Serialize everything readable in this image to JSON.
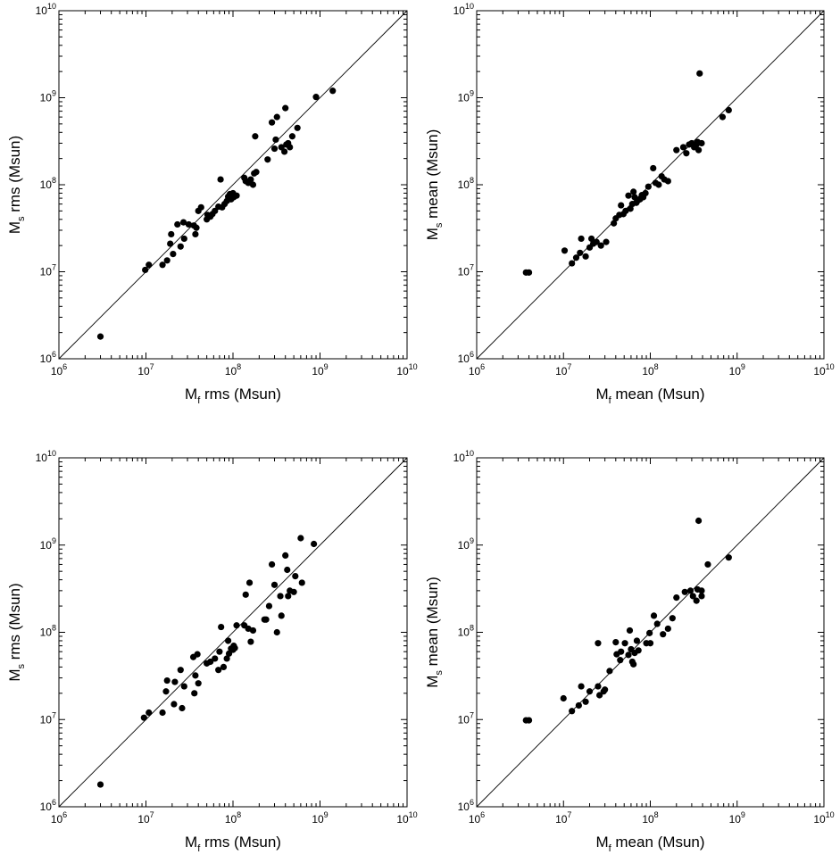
{
  "figure": {
    "panels": [
      {
        "xlabel_main": "M",
        "xlabel_sub": "f",
        "xlabel_rest": " rms (Msun)",
        "ylabel_main": "M",
        "ylabel_sub": "s",
        "ylabel_rest": " rms (Msun)"
      },
      {
        "xlabel_main": "M",
        "xlabel_sub": "f",
        "xlabel_rest": " mean (Msun)",
        "ylabel_main": "M",
        "ylabel_sub": "s",
        "ylabel_rest": " mean (Msun)"
      },
      {
        "xlabel_main": "M",
        "xlabel_sub": "f",
        "xlabel_rest": " rms (Msun)",
        "ylabel_main": "M",
        "ylabel_sub": "s",
        "ylabel_rest": " rms (Msun)"
      },
      {
        "xlabel_main": "M",
        "xlabel_sub": "f",
        "xlabel_rest": " mean (Msun)",
        "ylabel_main": "M",
        "ylabel_sub": "s",
        "ylabel_rest": " mean (Msun)"
      }
    ]
  },
  "chart_data": [
    {
      "type": "scatter",
      "xlabel": "M_f rms (Msun)",
      "ylabel": "M_s rms (Msun)",
      "xscale": "log",
      "yscale": "log",
      "xlim": [
        1000000.0,
        10000000000.0
      ],
      "ylim": [
        1000000.0,
        10000000000.0
      ],
      "tick_base": "10",
      "tick_exponents": [
        "6",
        "7",
        "8",
        "9",
        "10"
      ],
      "reference_line": "y = x",
      "grid": false,
      "points": [
        [
          3000000.0,
          1800000.0
        ],
        [
          9800000.0,
          10500000.0
        ],
        [
          10800000.0,
          12000000.0
        ],
        [
          15500000.0,
          12000000.0
        ],
        [
          17500000.0,
          13500000.0
        ],
        [
          19000000.0,
          21000000.0
        ],
        [
          19500000.0,
          27000000.0
        ],
        [
          20500000.0,
          16000000.0
        ],
        [
          23000000.0,
          35000000.0
        ],
        [
          25000000.0,
          19500000.0
        ],
        [
          27000000.0,
          37000000.0
        ],
        [
          27500000.0,
          24000000.0
        ],
        [
          31000000.0,
          35000000.0
        ],
        [
          35500000.0,
          34000000.0
        ],
        [
          37000000.0,
          27000000.0
        ],
        [
          38000000.0,
          32000000.0
        ],
        [
          40000000.0,
          50000000.0
        ],
        [
          43000000.0,
          55000000.0
        ],
        [
          50000000.0,
          40000000.0
        ],
        [
          51000000.0,
          45000000.0
        ],
        [
          55000000.0,
          43000000.0
        ],
        [
          58000000.0,
          46000000.0
        ],
        [
          62000000.0,
          50000000.0
        ],
        [
          68000000.0,
          56000000.0
        ],
        [
          72000000.0,
          115000000.0
        ],
        [
          75000000.0,
          55000000.0
        ],
        [
          80000000.0,
          60000000.0
        ],
        [
          85000000.0,
          65000000.0
        ],
        [
          88000000.0,
          73000000.0
        ],
        [
          92000000.0,
          78000000.0
        ],
        [
          95000000.0,
          68000000.0
        ],
        [
          100000000.0,
          80000000.0
        ],
        [
          102000000.0,
          72000000.0
        ],
        [
          110000000.0,
          75000000.0
        ],
        [
          135000000.0,
          120000000.0
        ],
        [
          140000000.0,
          110000000.0
        ],
        [
          150000000.0,
          105000000.0
        ],
        [
          160000000.0,
          115000000.0
        ],
        [
          170000000.0,
          100000000.0
        ],
        [
          175000000.0,
          135000000.0
        ],
        [
          180000000.0,
          360000000.0
        ],
        [
          185000000.0,
          140000000.0
        ],
        [
          250000000.0,
          195000000.0
        ],
        [
          280000000.0,
          520000000.0
        ],
        [
          300000000.0,
          260000000.0
        ],
        [
          310000000.0,
          330000000.0
        ],
        [
          320000000.0,
          600000000.0
        ],
        [
          360000000.0,
          270000000.0
        ],
        [
          390000000.0,
          240000000.0
        ],
        [
          400000000.0,
          760000000.0
        ],
        [
          410000000.0,
          290000000.0
        ],
        [
          430000000.0,
          300000000.0
        ],
        [
          450000000.0,
          270000000.0
        ],
        [
          480000000.0,
          360000000.0
        ],
        [
          550000000.0,
          450000000.0
        ],
        [
          900000000.0,
          1020000000.0
        ],
        [
          1400000000.0,
          1200000000.0
        ]
      ]
    },
    {
      "type": "scatter",
      "xlabel": "M_f mean (Msun)",
      "ylabel": "M_s mean (Msun)",
      "xscale": "log",
      "yscale": "log",
      "xlim": [
        1000000.0,
        10000000000.0
      ],
      "ylim": [
        1000000.0,
        10000000000.0
      ],
      "tick_base": "10",
      "tick_exponents": [
        "6",
        "7",
        "8",
        "9",
        "10"
      ],
      "reference_line": "y = x",
      "grid": false,
      "points": [
        [
          3700000.0,
          9800000.0
        ],
        [
          4000000.0,
          9800000.0
        ],
        [
          10300000.0,
          17500000.0
        ],
        [
          12500000.0,
          12500000.0
        ],
        [
          14000000.0,
          14500000.0
        ],
        [
          15500000.0,
          16500000.0
        ],
        [
          16000000.0,
          24000000.0
        ],
        [
          18000000.0,
          15000000.0
        ],
        [
          20000000.0,
          19000000.0
        ],
        [
          21000000.0,
          24000000.0
        ],
        [
          22000000.0,
          21000000.0
        ],
        [
          24000000.0,
          22000000.0
        ],
        [
          27000000.0,
          20000000.0
        ],
        [
          31000000.0,
          22000000.0
        ],
        [
          38000000.0,
          36000000.0
        ],
        [
          40000000.0,
          41000000.0
        ],
        [
          44000000.0,
          45000000.0
        ],
        [
          46000000.0,
          58000000.0
        ],
        [
          49000000.0,
          46000000.0
        ],
        [
          52000000.0,
          50000000.0
        ],
        [
          56000000.0,
          75000000.0
        ],
        [
          59000000.0,
          53000000.0
        ],
        [
          62000000.0,
          60000000.0
        ],
        [
          64000000.0,
          83000000.0
        ],
        [
          66000000.0,
          72000000.0
        ],
        [
          69000000.0,
          62000000.0
        ],
        [
          72000000.0,
          66000000.0
        ],
        [
          76000000.0,
          68000000.0
        ],
        [
          80000000.0,
          76000000.0
        ],
        [
          83000000.0,
          72000000.0
        ],
        [
          88000000.0,
          80000000.0
        ],
        [
          95000000.0,
          95000000.0
        ],
        [
          108000000.0,
          155000000.0
        ],
        [
          115000000.0,
          105000000.0
        ],
        [
          125000000.0,
          100000000.0
        ],
        [
          135000000.0,
          125000000.0
        ],
        [
          145000000.0,
          115000000.0
        ],
        [
          160000000.0,
          110000000.0
        ],
        [
          200000000.0,
          250000000.0
        ],
        [
          240000000.0,
          270000000.0
        ],
        [
          260000000.0,
          230000000.0
        ],
        [
          280000000.0,
          290000000.0
        ],
        [
          300000000.0,
          300000000.0
        ],
        [
          320000000.0,
          270000000.0
        ],
        [
          340000000.0,
          290000000.0
        ],
        [
          350000000.0,
          310000000.0
        ],
        [
          360000000.0,
          250000000.0
        ],
        [
          370000000.0,
          1900000000.0
        ],
        [
          390000000.0,
          300000000.0
        ],
        [
          680000000.0,
          600000000.0
        ],
        [
          800000000.0,
          720000000.0
        ]
      ]
    },
    {
      "type": "scatter",
      "xlabel": "M_f rms (Msun)",
      "ylabel": "M_s rms (Msun)",
      "xscale": "log",
      "yscale": "log",
      "xlim": [
        1000000.0,
        10000000000.0
      ],
      "ylim": [
        1000000.0,
        10000000000.0
      ],
      "tick_base": "10",
      "tick_exponents": [
        "6",
        "7",
        "8",
        "9",
        "10"
      ],
      "reference_line": "y = x",
      "grid": false,
      "points": [
        [
          3000000.0,
          1800000.0
        ],
        [
          9500000.0,
          10500000.0
        ],
        [
          10800000.0,
          12000000.0
        ],
        [
          15500000.0,
          12000000.0
        ],
        [
          17000000.0,
          21000000.0
        ],
        [
          17500000.0,
          28000000.0
        ],
        [
          21000000.0,
          15000000.0
        ],
        [
          21500000.0,
          27000000.0
        ],
        [
          25000000.0,
          37000000.0
        ],
        [
          26000000.0,
          13500000.0
        ],
        [
          27500000.0,
          24000000.0
        ],
        [
          35000000.0,
          52000000.0
        ],
        [
          36000000.0,
          20000000.0
        ],
        [
          37000000.0,
          32000000.0
        ],
        [
          39000000.0,
          56000000.0
        ],
        [
          40000000.0,
          26000000.0
        ],
        [
          50000000.0,
          44000000.0
        ],
        [
          55000000.0,
          46000000.0
        ],
        [
          62000000.0,
          50000000.0
        ],
        [
          68000000.0,
          37000000.0
        ],
        [
          70000000.0,
          60000000.0
        ],
        [
          73000000.0,
          115000000.0
        ],
        [
          78000000.0,
          40000000.0
        ],
        [
          85000000.0,
          50000000.0
        ],
        [
          88000000.0,
          80000000.0
        ],
        [
          90000000.0,
          57000000.0
        ],
        [
          95000000.0,
          65000000.0
        ],
        [
          100000000.0,
          63000000.0
        ],
        [
          102000000.0,
          70000000.0
        ],
        [
          105000000.0,
          66000000.0
        ],
        [
          110000000.0,
          120000000.0
        ],
        [
          135000000.0,
          120000000.0
        ],
        [
          140000000.0,
          270000000.0
        ],
        [
          150000000.0,
          110000000.0
        ],
        [
          155000000.0,
          370000000.0
        ],
        [
          160000000.0,
          78000000.0
        ],
        [
          170000000.0,
          105000000.0
        ],
        [
          230000000.0,
          140000000.0
        ],
        [
          240000000.0,
          140000000.0
        ],
        [
          260000000.0,
          200000000.0
        ],
        [
          280000000.0,
          600000000.0
        ],
        [
          300000000.0,
          350000000.0
        ],
        [
          320000000.0,
          100000000.0
        ],
        [
          350000000.0,
          260000000.0
        ],
        [
          360000000.0,
          155000000.0
        ],
        [
          400000000.0,
          760000000.0
        ],
        [
          420000000.0,
          520000000.0
        ],
        [
          430000000.0,
          260000000.0
        ],
        [
          450000000.0,
          300000000.0
        ],
        [
          500000000.0,
          290000000.0
        ],
        [
          520000000.0,
          440000000.0
        ],
        [
          600000000.0,
          1200000000.0
        ],
        [
          620000000.0,
          370000000.0
        ],
        [
          850000000.0,
          1030000000.0
        ]
      ]
    },
    {
      "type": "scatter",
      "xlabel": "M_f mean (Msun)",
      "ylabel": "M_s mean (Msun)",
      "xscale": "log",
      "yscale": "log",
      "xlim": [
        1000000.0,
        10000000000.0
      ],
      "ylim": [
        1000000.0,
        10000000000.0
      ],
      "tick_base": "10",
      "tick_exponents": [
        "6",
        "7",
        "8",
        "9",
        "10"
      ],
      "reference_line": "y = x",
      "grid": false,
      "points": [
        [
          3700000.0,
          9800000.0
        ],
        [
          4000000.0,
          9800000.0
        ],
        [
          10000000.0,
          17500000.0
        ],
        [
          12500000.0,
          12500000.0
        ],
        [
          15000000.0,
          14500000.0
        ],
        [
          16000000.0,
          24000000.0
        ],
        [
          18000000.0,
          16000000.0
        ],
        [
          20000000.0,
          21000000.0
        ],
        [
          25000000.0,
          75000000.0
        ],
        [
          25000000.0,
          24000000.0
        ],
        [
          26000000.0,
          19000000.0
        ],
        [
          29000000.0,
          21000000.0
        ],
        [
          30000000.0,
          22000000.0
        ],
        [
          34000000.0,
          36000000.0
        ],
        [
          40000000.0,
          77000000.0
        ],
        [
          41000000.0,
          56000000.0
        ],
        [
          45000000.0,
          48000000.0
        ],
        [
          46000000.0,
          60000000.0
        ],
        [
          51000000.0,
          75000000.0
        ],
        [
          56000000.0,
          55000000.0
        ],
        [
          58000000.0,
          105000000.0
        ],
        [
          60000000.0,
          64000000.0
        ],
        [
          62000000.0,
          46000000.0
        ],
        [
          64000000.0,
          43000000.0
        ],
        [
          66000000.0,
          58000000.0
        ],
        [
          70000000.0,
          80000000.0
        ],
        [
          73000000.0,
          62000000.0
        ],
        [
          90000000.0,
          75000000.0
        ],
        [
          98000000.0,
          98000000.0
        ],
        [
          100000000.0,
          75000000.0
        ],
        [
          110000000.0,
          155000000.0
        ],
        [
          120000000.0,
          125000000.0
        ],
        [
          140000000.0,
          95000000.0
        ],
        [
          160000000.0,
          110000000.0
        ],
        [
          180000000.0,
          145000000.0
        ],
        [
          200000000.0,
          250000000.0
        ],
        [
          250000000.0,
          290000000.0
        ],
        [
          290000000.0,
          300000000.0
        ],
        [
          310000000.0,
          260000000.0
        ],
        [
          340000000.0,
          230000000.0
        ],
        [
          350000000.0,
          310000000.0
        ],
        [
          360000000.0,
          1900000000.0
        ],
        [
          390000000.0,
          300000000.0
        ],
        [
          390000000.0,
          260000000.0
        ],
        [
          460000000.0,
          600000000.0
        ],
        [
          800000000.0,
          720000000.0
        ]
      ]
    }
  ]
}
